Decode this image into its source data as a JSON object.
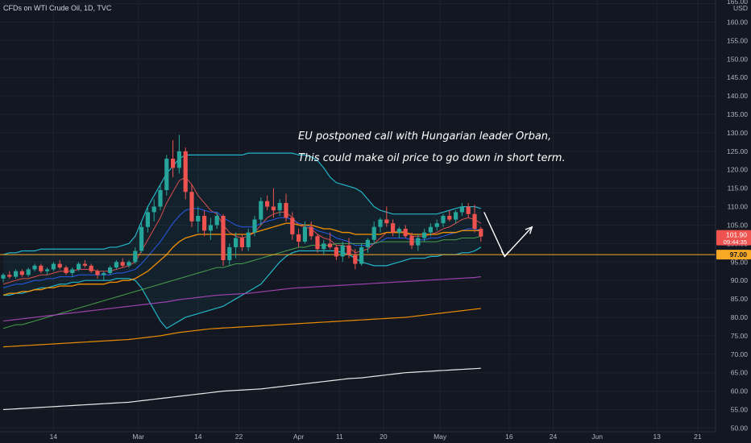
{
  "header": {
    "title": "CFDs on WTI Crude Oil, 1D, TVC"
  },
  "annotation": {
    "line1": "EU postponed call with Hungarian leader Orban,",
    "line2": "This could make oil price to go down in short term."
  },
  "price_scale": {
    "currency": "USD",
    "last_price_label": "101.90",
    "countdown_label": "09:44:35",
    "level_label": "97.00"
  },
  "colors": {
    "background": "#131722",
    "up_candle": "#26a69a",
    "down_candle": "#ef5350",
    "bb_band": "#26c6da",
    "ema_fast": "#ef5350",
    "ema_mid": "#2962ff",
    "ema_slow": "#ff9800",
    "ema_50": "#4caf50",
    "ema_100": "#ab47bc",
    "ema_150": "#ff9800",
    "ema_200": "#ffffff",
    "level_line": "#f9a825",
    "last_price_tag": "#ef5350"
  },
  "chart_data": {
    "type": "candlestick",
    "symbol": "CFDs on WTI Crude Oil",
    "interval": "1D",
    "source": "TVC",
    "x_tick_labels": [
      "14",
      "Mar",
      "14",
      "22",
      "Apr",
      "11",
      "20",
      "May",
      "16",
      "24",
      "Jun",
      "13",
      "21"
    ],
    "y_tick_labels": [
      "165.00",
      "160.00",
      "155.00",
      "150.00",
      "145.00",
      "140.00",
      "135.00",
      "130.00",
      "125.00",
      "120.00",
      "115.00",
      "110.00",
      "105.00",
      "100.00",
      "95.00",
      "90.00",
      "85.00",
      "80.00",
      "75.00",
      "70.00",
      "65.00",
      "60.00",
      "55.00",
      "50.00"
    ],
    "ylim": [
      49,
      166
    ],
    "candles": [
      [
        90.5,
        92.0,
        89.5,
        91.5
      ],
      [
        91.5,
        92.5,
        90.5,
        91.0
      ],
      [
        91.0,
        93.0,
        90.5,
        92.5
      ],
      [
        92.5,
        93.0,
        91.0,
        91.5
      ],
      [
        91.5,
        93.5,
        91.0,
        93.0
      ],
      [
        93.0,
        94.5,
        92.5,
        94.0
      ],
      [
        94.0,
        94.5,
        92.0,
        92.5
      ],
      [
        92.5,
        93.5,
        91.5,
        93.0
      ],
      [
        93.0,
        95.0,
        92.5,
        94.5
      ],
      [
        94.5,
        95.5,
        93.0,
        93.5
      ],
      [
        93.5,
        94.0,
        91.5,
        92.0
      ],
      [
        92.0,
        93.5,
        91.0,
        93.0
      ],
      [
        93.0,
        95.0,
        92.5,
        94.5
      ],
      [
        94.5,
        95.5,
        93.5,
        94.0
      ],
      [
        94.0,
        94.5,
        92.0,
        92.5
      ],
      [
        92.5,
        93.0,
        90.5,
        91.5
      ],
      [
        91.5,
        92.5,
        90.0,
        92.0
      ],
      [
        92.0,
        94.0,
        91.5,
        93.5
      ],
      [
        93.5,
        95.5,
        93.0,
        95.0
      ],
      [
        95.0,
        96.0,
        93.5,
        94.0
      ],
      [
        94.0,
        95.5,
        93.5,
        95.0
      ],
      [
        95.0,
        99.0,
        94.5,
        98.0
      ],
      [
        98.0,
        106.0,
        97.5,
        104.5
      ],
      [
        104.5,
        110.0,
        103.0,
        108.5
      ],
      [
        108.5,
        112.0,
        106.0,
        110.0
      ],
      [
        110.0,
        116.0,
        109.0,
        114.5
      ],
      [
        114.5,
        124.0,
        113.0,
        123.0
      ],
      [
        123.0,
        128.0,
        118.0,
        120.5
      ],
      [
        120.5,
        129.5,
        119.0,
        125.0
      ],
      [
        125.0,
        126.0,
        112.0,
        114.0
      ],
      [
        114.0,
        116.0,
        104.5,
        106.0
      ],
      [
        106.0,
        110.0,
        103.0,
        107.5
      ],
      [
        107.5,
        109.0,
        102.0,
        103.5
      ],
      [
        103.5,
        107.0,
        101.0,
        105.0
      ],
      [
        105.0,
        108.5,
        104.0,
        107.5
      ],
      [
        107.5,
        108.0,
        94.0,
        95.5
      ],
      [
        95.5,
        100.0,
        94.0,
        99.0
      ],
      [
        99.0,
        103.0,
        96.0,
        101.5
      ],
      [
        101.5,
        102.5,
        98.0,
        99.0
      ],
      [
        99.0,
        104.0,
        98.0,
        103.0
      ],
      [
        103.0,
        107.5,
        102.0,
        106.5
      ],
      [
        106.5,
        112.5,
        105.0,
        111.5
      ],
      [
        111.5,
        113.0,
        109.0,
        110.0
      ],
      [
        110.0,
        115.0,
        107.0,
        109.0
      ],
      [
        109.0,
        112.0,
        107.5,
        111.0
      ],
      [
        111.0,
        113.5,
        106.0,
        107.0
      ],
      [
        107.0,
        108.5,
        101.0,
        102.5
      ],
      [
        102.5,
        104.0,
        99.0,
        100.5
      ],
      [
        100.5,
        106.0,
        100.0,
        104.5
      ],
      [
        104.5,
        106.0,
        101.0,
        102.0
      ],
      [
        102.0,
        102.5,
        97.5,
        98.5
      ],
      [
        98.5,
        101.0,
        97.0,
        100.0
      ],
      [
        100.0,
        103.0,
        98.5,
        99.0
      ],
      [
        99.0,
        99.5,
        95.5,
        96.5
      ],
      [
        96.5,
        100.5,
        95.0,
        99.5
      ],
      [
        99.5,
        101.5,
        96.0,
        97.0
      ],
      [
        97.0,
        98.5,
        93.0,
        94.5
      ],
      [
        94.5,
        100.0,
        94.0,
        99.0
      ],
      [
        99.0,
        101.5,
        97.5,
        101.0
      ],
      [
        101.0,
        106.0,
        100.0,
        104.5
      ],
      [
        104.5,
        107.0,
        103.0,
        106.5
      ],
      [
        106.5,
        110.0,
        104.5,
        105.5
      ],
      [
        105.5,
        106.5,
        102.0,
        103.0
      ],
      [
        103.0,
        104.5,
        101.5,
        104.0
      ],
      [
        104.0,
        105.0,
        101.5,
        102.0
      ],
      [
        102.0,
        103.0,
        98.5,
        99.5
      ],
      [
        99.5,
        102.5,
        98.0,
        101.5
      ],
      [
        101.5,
        104.0,
        100.5,
        103.0
      ],
      [
        103.0,
        105.5,
        102.0,
        104.5
      ],
      [
        104.5,
        106.5,
        103.5,
        105.5
      ],
      [
        105.5,
        108.0,
        104.5,
        107.5
      ],
      [
        107.5,
        109.0,
        106.0,
        106.5
      ],
      [
        106.5,
        109.0,
        105.5,
        108.5
      ],
      [
        108.5,
        111.0,
        107.5,
        110.0
      ],
      [
        110.0,
        111.0,
        107.0,
        108.0
      ],
      [
        108.0,
        110.5,
        103.0,
        104.0
      ],
      [
        104.0,
        104.5,
        100.5,
        101.9
      ]
    ],
    "series": [
      {
        "kind": "bollinger_upper",
        "values": [
          97,
          97.5,
          97.5,
          98,
          98,
          98,
          98.5,
          98.5,
          98.5,
          98.5,
          98.5,
          98.5,
          98.5,
          98.5,
          98.5,
          98.5,
          98.5,
          99,
          99,
          99.5,
          100,
          102,
          106,
          110,
          113,
          116,
          119,
          121,
          123,
          124,
          124,
          124,
          124,
          124,
          124,
          124,
          124,
          124,
          124,
          124.5,
          124.5,
          124.5,
          124.5,
          124.5,
          124.5,
          124.5,
          124.5,
          124,
          124,
          123.5,
          122.5,
          120.5,
          118,
          116.5,
          116,
          115.5,
          115,
          114,
          112,
          110,
          109,
          108.5,
          108,
          108,
          108,
          108,
          108,
          108,
          108,
          108,
          108.5,
          109,
          109.5,
          110,
          110,
          110,
          109.5
        ]
      },
      {
        "kind": "bollinger_lower",
        "values": [
          86,
          86,
          86.5,
          86.5,
          87,
          87.5,
          88,
          88,
          88.5,
          89,
          89,
          89.5,
          89.5,
          90,
          90,
          90,
          90,
          90,
          90.5,
          90.5,
          90.5,
          90,
          88,
          85,
          82,
          79,
          77,
          78,
          79,
          80,
          80.5,
          81,
          81.5,
          82,
          82.5,
          83,
          84,
          85,
          86,
          87,
          88,
          89,
          91,
          93,
          95,
          96.5,
          97.5,
          98,
          98,
          98,
          98,
          98,
          98,
          98,
          97.5,
          97,
          96,
          95,
          94.5,
          94,
          94,
          94,
          94.5,
          95,
          95.5,
          96,
          96,
          96,
          96.5,
          96.5,
          97,
          97,
          97,
          97.5,
          97.5,
          98,
          99
        ]
      },
      {
        "kind": "ema_fast",
        "values": [
          89,
          89.5,
          90,
          90.5,
          90.5,
          91,
          91.5,
          91.5,
          92,
          92.5,
          92.5,
          92.5,
          93,
          93,
          93,
          92.5,
          92.5,
          92.5,
          93,
          93.5,
          94,
          95,
          98,
          101,
          104,
          107,
          111,
          114,
          117,
          118,
          116,
          113,
          111,
          109,
          108,
          105,
          103,
          102,
          101.5,
          102,
          103,
          105,
          107,
          108,
          108.5,
          108.5,
          107,
          105,
          104.5,
          104,
          102.5,
          101.5,
          101,
          99.5,
          99.5,
          99,
          97.5,
          98,
          98.5,
          100,
          101.5,
          103,
          103,
          103.5,
          103,
          102,
          102,
          102,
          102.5,
          103,
          104,
          104.5,
          105.5,
          106.5,
          107,
          106.5,
          105.5
        ]
      },
      {
        "kind": "ema_mid",
        "values": [
          88,
          88.5,
          89,
          89,
          89.5,
          90,
          90,
          90.5,
          90.5,
          91,
          91,
          91,
          91.5,
          91.5,
          91.5,
          91.5,
          91.5,
          91.5,
          92,
          92,
          92.5,
          93,
          94.5,
          96.5,
          98.5,
          100.5,
          103,
          105.5,
          107.5,
          109,
          109.5,
          109.5,
          109,
          108.5,
          108.5,
          107,
          106,
          105,
          104.5,
          104.5,
          104.5,
          105.5,
          106,
          106.5,
          107,
          107,
          106.5,
          105.5,
          105,
          104.5,
          103.5,
          103,
          102.5,
          101.5,
          101,
          100.5,
          99.5,
          99.5,
          99.5,
          100,
          100.5,
          101.5,
          101.5,
          101.5,
          101.5,
          101,
          101,
          101,
          101.5,
          101.5,
          102,
          102.5,
          103,
          103.5,
          104,
          104,
          103.5
        ]
      },
      {
        "kind": "ema_slow",
        "values": [
          86,
          86.5,
          86.5,
          87,
          87,
          87.5,
          87.5,
          88,
          88,
          88.5,
          88.5,
          88.5,
          89,
          89,
          89,
          89,
          89,
          89.5,
          89.5,
          90,
          90,
          90.5,
          91.5,
          92.5,
          94,
          95.5,
          97,
          99,
          100.5,
          101.5,
          102,
          102.5,
          102.5,
          102.5,
          102.5,
          102.5,
          102.5,
          102.5,
          102.5,
          102.5,
          103,
          103.5,
          104,
          104.5,
          105,
          105.5,
          105.5,
          105,
          105,
          105,
          104.5,
          104,
          104,
          103.5,
          103,
          103,
          102.5,
          102.5,
          102.5,
          102.5,
          102.5,
          103,
          103,
          103,
          103,
          102.5,
          102.5,
          102.5,
          102.5,
          102.5,
          103,
          103,
          103,
          103.5,
          103.5,
          103.5,
          103.5
        ]
      },
      {
        "kind": "ema_50",
        "values": [
          77,
          77.5,
          78,
          78,
          78.5,
          79,
          79.5,
          80,
          80.5,
          81,
          81.5,
          82,
          82.5,
          83,
          83.5,
          84,
          84.5,
          85,
          85.5,
          86,
          86.5,
          87,
          87.5,
          88,
          88.5,
          89,
          89.5,
          90,
          90.5,
          91,
          91.5,
          92,
          92.5,
          93,
          93.5,
          93.5,
          94,
          94.5,
          94.5,
          95,
          95.5,
          96,
          96.5,
          97,
          97.5,
          98,
          98.5,
          99,
          99,
          99.5,
          99.5,
          99.5,
          99.5,
          100,
          100,
          100,
          100,
          100,
          100,
          100,
          100.5,
          100.5,
          100.5,
          100.5,
          100.5,
          100.5,
          100.5,
          100.5,
          100.5,
          100.5,
          101,
          101,
          101,
          101.5,
          101.5,
          101.5,
          102
        ]
      },
      {
        "kind": "ema_100",
        "values": [
          79,
          79.2,
          79.4,
          79.6,
          79.8,
          80,
          80.2,
          80.4,
          80.6,
          80.8,
          81,
          81.2,
          81.4,
          81.6,
          81.8,
          82,
          82.2,
          82.4,
          82.6,
          82.8,
          83,
          83.2,
          83.4,
          83.6,
          83.8,
          84,
          84.2,
          84.5,
          84.8,
          85,
          85.2,
          85.4,
          85.6,
          85.8,
          86,
          86.1,
          86.2,
          86.3,
          86.4,
          86.5,
          86.7,
          86.9,
          87.1,
          87.3,
          87.5,
          87.7,
          87.9,
          88,
          88.1,
          88.2,
          88.3,
          88.4,
          88.5,
          88.6,
          88.7,
          88.8,
          88.9,
          89,
          89.1,
          89.2,
          89.3,
          89.4,
          89.5,
          89.6,
          89.7,
          89.8,
          89.9,
          90,
          90.1,
          90.2,
          90.3,
          90.4,
          90.5,
          90.6,
          90.7,
          90.8,
          91
        ]
      },
      {
        "kind": "ema_150",
        "values": [
          72,
          72.1,
          72.2,
          72.3,
          72.4,
          72.5,
          72.6,
          72.7,
          72.8,
          72.9,
          73,
          73.1,
          73.2,
          73.3,
          73.4,
          73.5,
          73.6,
          73.7,
          73.8,
          73.9,
          74,
          74.2,
          74.4,
          74.6,
          74.8,
          75,
          75.3,
          75.6,
          75.9,
          76.1,
          76.3,
          76.5,
          76.7,
          76.9,
          77,
          77.1,
          77.2,
          77.3,
          77.4,
          77.5,
          77.6,
          77.7,
          77.8,
          77.9,
          78,
          78.1,
          78.2,
          78.3,
          78.4,
          78.5,
          78.6,
          78.7,
          78.8,
          78.9,
          79,
          79.1,
          79.2,
          79.3,
          79.4,
          79.5,
          79.6,
          79.7,
          79.8,
          79.9,
          80,
          80.2,
          80.4,
          80.6,
          80.8,
          81,
          81.2,
          81.4,
          81.6,
          81.8,
          82,
          82.2,
          82.4
        ]
      },
      {
        "kind": "ema_200",
        "values": [
          55,
          55.1,
          55.2,
          55.3,
          55.4,
          55.5,
          55.6,
          55.7,
          55.8,
          55.9,
          56,
          56.1,
          56.2,
          56.3,
          56.4,
          56.5,
          56.6,
          56.7,
          56.8,
          56.9,
          57,
          57.2,
          57.4,
          57.6,
          57.8,
          58,
          58.2,
          58.4,
          58.6,
          58.8,
          59,
          59.2,
          59.4,
          59.6,
          59.8,
          60,
          60.1,
          60.2,
          60.3,
          60.4,
          60.5,
          60.6,
          60.8,
          61,
          61.2,
          61.4,
          61.6,
          61.8,
          62,
          62.2,
          62.4,
          62.6,
          62.8,
          63,
          63.2,
          63.4,
          63.5,
          63.6,
          63.8,
          64,
          64.2,
          64.4,
          64.6,
          64.8,
          65,
          65.1,
          65.2,
          65.3,
          65.4,
          65.5,
          65.6,
          65.7,
          65.8,
          65.9,
          66,
          66.1,
          66.2
        ]
      }
    ],
    "horizontal_level": 97.0,
    "last_price": 101.9,
    "projection_arrow": [
      [
        0,
        108.5
      ],
      [
        3,
        96.5
      ],
      [
        7,
        104.5
      ]
    ]
  }
}
